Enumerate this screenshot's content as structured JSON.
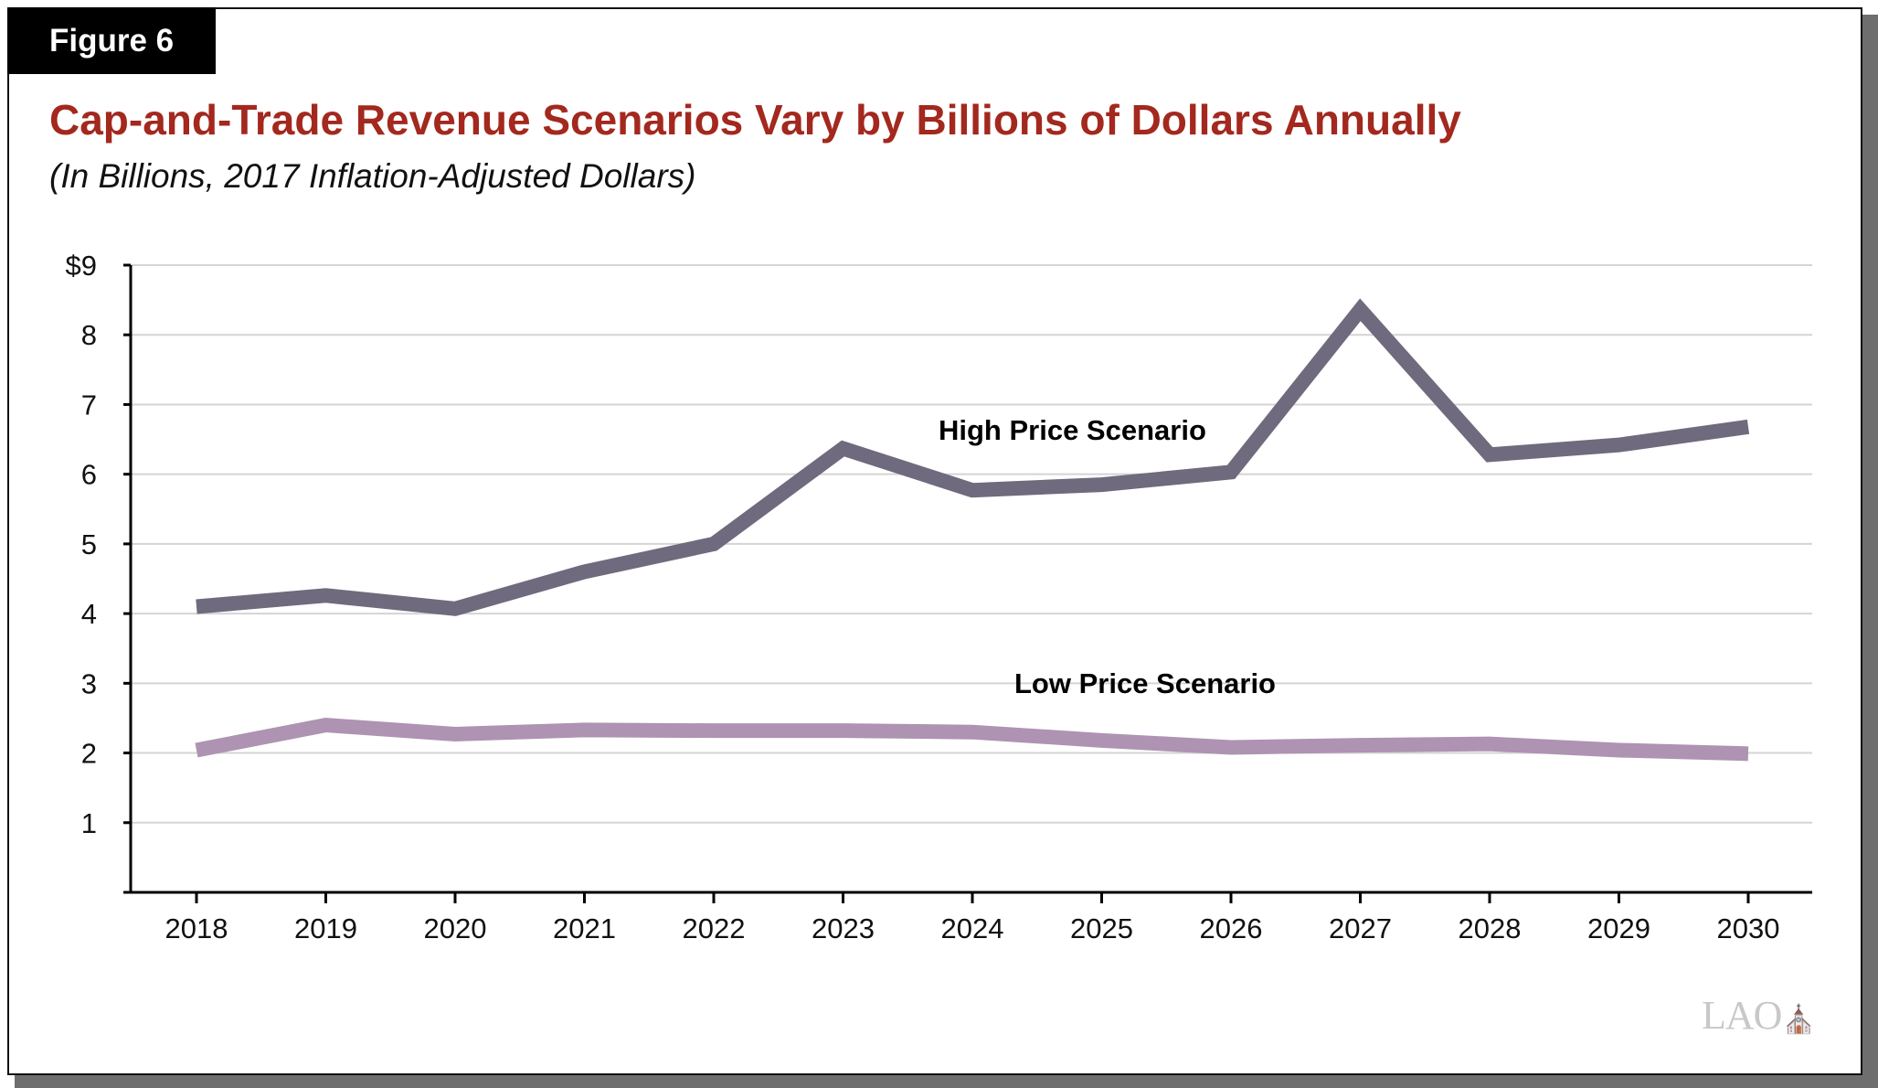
{
  "figure_label": "Figure 6",
  "logo_text": "LAO",
  "chart_data": {
    "type": "line",
    "title": "Cap-and-Trade Revenue Scenarios Vary by Billions of Dollars Annually",
    "subtitle": "(In Billions, 2017 Inflation-Adjusted Dollars)",
    "xlabel": "",
    "ylabel": "",
    "ylim": [
      0,
      9
    ],
    "y_ticks": [
      "",
      "1",
      "2",
      "3",
      "4",
      "5",
      "6",
      "7",
      "8",
      "$9"
    ],
    "grid": true,
    "categories": [
      "2018",
      "2019",
      "2020",
      "2021",
      "2022",
      "2023",
      "2024",
      "2025",
      "2026",
      "2027",
      "2028",
      "2029",
      "2030"
    ],
    "series": [
      {
        "name": "High Price Scenario",
        "color": "#6f6a7d",
        "values": [
          4.1,
          4.26,
          4.07,
          4.6,
          5.0,
          6.37,
          5.77,
          5.85,
          6.03,
          8.36,
          6.28,
          6.42,
          6.68
        ]
      },
      {
        "name": "Low Price Scenario",
        "color": "#ae93b2",
        "values": [
          2.04,
          2.4,
          2.27,
          2.33,
          2.32,
          2.32,
          2.3,
          2.18,
          2.08,
          2.11,
          2.13,
          2.04,
          1.99
        ]
      }
    ]
  }
}
